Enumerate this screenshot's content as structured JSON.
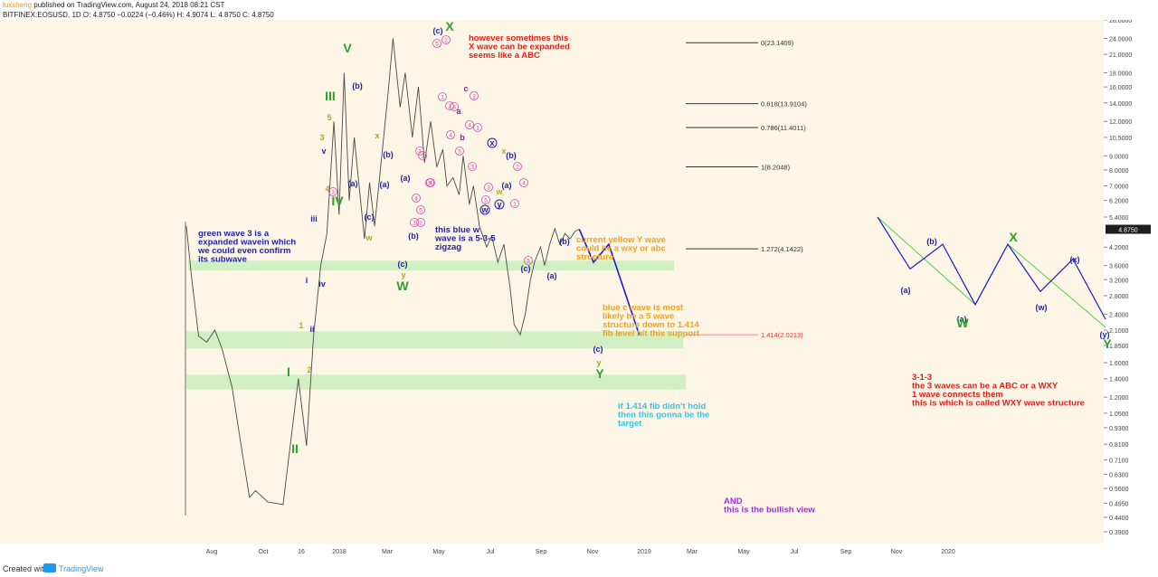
{
  "header": {
    "user": "luxsheng",
    "published": " published on TradingView.com, August 24, 2018 08:21 CST",
    "ticker_line": "BITFINEX:EOSUSD, 1D  O: 4.8750  −0.0224 (−0.46%)  H: 4.9074  L: 4.8750  C: 4.8750"
  },
  "footer": {
    "created_with": "Created with",
    "brand": "TradingView"
  },
  "chart_data": {
    "type": "line",
    "title": "BITFINEX:EOSUSD, 1D",
    "scale": "log",
    "ylim": [
      0.39,
      25.2
    ],
    "y_ticks": [
      "28.0000",
      "24.0000",
      "21.0000",
      "18.0000",
      "16.0000",
      "14.0000",
      "12.0000",
      "10.5000",
      "9.0000",
      "8.0000",
      "7.0000",
      "6.2000",
      "5.4000",
      "4.8750",
      "4.2000",
      "3.6000",
      "3.2000",
      "2.8000",
      "2.4000",
      "2.1000",
      "1.8500",
      "1.6000",
      "1.4000",
      "1.2000",
      "1.0500",
      "0.9300",
      "0.8100",
      "0.7100",
      "0.6300",
      "0.5600",
      "0.4950",
      "0.4400",
      "0.3900"
    ],
    "x_ticks": [
      "Aug",
      "Oct",
      "16",
      "2018",
      "Mar",
      "May",
      "Jul",
      "Sep",
      "Nov",
      "2019",
      "Mar",
      "May",
      "Jul",
      "Sep",
      "Nov",
      "2020"
    ],
    "last_price": "4.8750",
    "price_series": {
      "name": "EOSUSD",
      "x": [
        0,
        5,
        12,
        20,
        28,
        35,
        45,
        55,
        62,
        68,
        80,
        95,
        110,
        118,
        125,
        132,
        138,
        145,
        150,
        155,
        160,
        165,
        170,
        175,
        180,
        185,
        192,
        198,
        203,
        210,
        215,
        222,
        228,
        234,
        240,
        246,
        252,
        256,
        262,
        268,
        272,
        278,
        282,
        288,
        295,
        300,
        306,
        312,
        318,
        322,
        328,
        333,
        338,
        342,
        348,
        352,
        357,
        362,
        367,
        372,
        377,
        382,
        386
      ],
      "y": [
        5.0,
        3.3,
        2.0,
        1.9,
        2.1,
        1.8,
        1.3,
        0.75,
        0.52,
        0.55,
        0.5,
        0.49,
        1.4,
        0.8,
        2.0,
        3.6,
        4.7,
        12.0,
        5.5,
        18.0,
        6.2,
        10.5,
        6.8,
        4.5,
        7.2,
        5.0,
        9.0,
        15.0,
        24.0,
        13.5,
        18.0,
        10.5,
        16.0,
        8.5,
        12.0,
        8.2,
        9.5,
        7.0,
        7.5,
        6.5,
        9.0,
        6.0,
        7.0,
        5.0,
        4.2,
        4.6,
        3.7,
        4.3,
        3.0,
        2.2,
        2.02,
        2.4,
        3.2,
        3.7,
        4.2,
        3.6,
        4.3,
        4.9,
        4.3,
        4.7,
        4.5,
        4.8,
        4.875
      ]
    },
    "projection": {
      "name": "blue c wave projection",
      "points": [
        [
          386,
          4.875
        ],
        [
          400,
          3.7
        ],
        [
          415,
          4.3
        ],
        [
          445,
          2.02
        ]
      ]
    },
    "schematic_blue": {
      "name": "WXY schematic (blue)",
      "points": [
        [
          1,
          5.4
        ],
        [
          2,
          3.5
        ],
        [
          3,
          4.3
        ],
        [
          4,
          2.6
        ],
        [
          5,
          4.3
        ],
        [
          6,
          2.9
        ],
        [
          7,
          3.8
        ],
        [
          8,
          2.3
        ]
      ]
    },
    "schematic_green": {
      "name": "WXY schematic (green)",
      "points": [
        [
          1,
          5.4
        ],
        [
          4,
          2.6
        ],
        [
          5,
          4.3
        ],
        [
          8,
          2.15
        ]
      ]
    },
    "fib_levels": [
      {
        "label": "0(23.1409)",
        "value": 23.1409
      },
      {
        "label": "0.618(13.9104)",
        "value": 13.9104
      },
      {
        "label": "0.786(11.4011)",
        "value": 11.4011
      },
      {
        "label": "1(8.2048)",
        "value": 8.2048
      },
      {
        "label": "1.272(4.1422)",
        "value": 4.1422
      },
      {
        "label": "1.414(2.0213)",
        "value": 2.0213
      }
    ],
    "support_zones": [
      {
        "low": 3.45,
        "high": 3.75
      },
      {
        "low": 1.8,
        "high": 2.08
      },
      {
        "low": 1.28,
        "high": 1.45
      }
    ],
    "wave_labels": [
      {
        "text": "V",
        "color": "#2ca02c",
        "big": true
      },
      {
        "text": "III",
        "color": "#2ca02c",
        "big": true
      },
      {
        "text": "IV",
        "color": "#2ca02c",
        "big": true
      },
      {
        "text": "I",
        "color": "#2ca02c",
        "big": true
      },
      {
        "text": "II",
        "color": "#2ca02c",
        "big": true
      },
      {
        "text": "5",
        "color": "#b5a21e"
      },
      {
        "text": "3",
        "color": "#b5a21e"
      },
      {
        "text": "4",
        "color": "#b5a21e"
      },
      {
        "text": "1",
        "color": "#b5a21e"
      },
      {
        "text": "2",
        "color": "#b5a21e"
      },
      {
        "text": "v",
        "color": "#1f1fa0"
      },
      {
        "text": "iii",
        "color": "#1f1fa0"
      },
      {
        "text": "i",
        "color": "#1f1fa0"
      },
      {
        "text": "iv",
        "color": "#1f1fa0"
      },
      {
        "text": "ii",
        "color": "#1f1fa0"
      },
      {
        "text": "(b)",
        "color": "#1f1fa0"
      },
      {
        "text": "(a)",
        "color": "#1f1fa0"
      },
      {
        "text": "(c)",
        "color": "#1f1fa0"
      },
      {
        "text": "x",
        "color": "#b5a21e"
      },
      {
        "text": "w",
        "color": "#b5a21e"
      },
      {
        "text": "(b)",
        "color": "#1f1fa0"
      },
      {
        "text": "(a)",
        "color": "#1f1fa0"
      },
      {
        "text": "(a)",
        "color": "#1f1fa0"
      },
      {
        "text": "(b)",
        "color": "#1f1fa0"
      },
      {
        "text": "(c)",
        "color": "#1f1fa0"
      },
      {
        "text": "y",
        "color": "#b5a21e"
      },
      {
        "text": "W",
        "color": "#2ca02c",
        "big": true
      },
      {
        "text": "(c)",
        "color": "#1f1fa0"
      },
      {
        "text": "X",
        "color": "#2ca02c",
        "big": true
      },
      {
        "text": "c",
        "color": "#8a1fa0"
      },
      {
        "text": "a",
        "color": "#8a1fa0"
      },
      {
        "text": "b",
        "color": "#8a1fa0"
      },
      {
        "text": "x",
        "color": "#1f1fa0",
        "circle": true
      },
      {
        "text": "x",
        "color": "#b5a21e"
      },
      {
        "text": "(b)",
        "color": "#1f1fa0"
      },
      {
        "text": "(a)",
        "color": "#1f1fa0"
      },
      {
        "text": "w",
        "color": "#b5a21e"
      },
      {
        "text": "w",
        "color": "#1f1fa0",
        "circle": true
      },
      {
        "text": "y",
        "color": "#1f1fa0",
        "circle": true
      },
      {
        "text": "(c)",
        "color": "#1f1fa0"
      },
      {
        "text": "(b)",
        "color": "#1f1fa0"
      },
      {
        "text": "(a)",
        "color": "#1f1fa0"
      },
      {
        "text": "(c)",
        "color": "#1f1fa0"
      },
      {
        "text": "y",
        "color": "#b5a21e"
      },
      {
        "text": "Y",
        "color": "#2ca02c",
        "big": true
      },
      {
        "text": "(b)",
        "color": "#1f1fa0"
      },
      {
        "text": "(a)",
        "color": "#1f1fa0"
      },
      {
        "text": "(a)",
        "color": "#1f1fa0"
      },
      {
        "text": "W",
        "color": "#2ca02c",
        "big": true
      },
      {
        "text": "X",
        "color": "#2ca02c",
        "big": true
      },
      {
        "text": "(x)",
        "color": "#1f1fa0"
      },
      {
        "text": "(w)",
        "color": "#1f1fa0"
      },
      {
        "text": "(y)",
        "color": "#1f1fa0"
      },
      {
        "text": "Y",
        "color": "#2ca02c",
        "big": true
      }
    ],
    "subwave_numbers": [
      "5",
      "2",
      "1",
      "3",
      "4",
      "5",
      "3",
      "4",
      "2",
      "1",
      "5",
      "3",
      "2",
      "4",
      "1",
      "5",
      "3",
      "2",
      "4",
      "5",
      "3",
      "1",
      "2",
      "4",
      "3",
      "5"
    ],
    "annotations": [
      {
        "color": "#e0201c",
        "lines": [
          "however sometimes this",
          "X wave can be expanded",
          "seems like a ABC"
        ]
      },
      {
        "color": "#2222aa",
        "lines": [
          "green wave 3 is a",
          "expanded wavein which",
          "we could even confirm",
          "its subwave"
        ]
      },
      {
        "color": "#2222aa",
        "lines": [
          "this blue w",
          "wave is a 5-3-5",
          "zigzag"
        ]
      },
      {
        "color": "#f0a020",
        "lines": [
          "current yellow Y wave",
          "could be a wxy or abc",
          "structure"
        ]
      },
      {
        "color": "#f0a020",
        "lines": [
          "blue c wave is most",
          "likely be a 5 wave",
          "structure down to 1.414",
          "fib level hit this support"
        ]
      },
      {
        "color": "#33c5e8",
        "lines": [
          "if 1.414 fib didn't hold",
          "then this gonna be the",
          "target"
        ]
      },
      {
        "color": "#9b30d9",
        "lines": [
          "AND",
          "this is the bullish view"
        ]
      },
      {
        "color": "#e0201c",
        "lines": [
          "3-1-3",
          "the 3 waves can be a ABC or a WXY",
          "1 wave connects them",
          "this is which is called WXY wave structure"
        ]
      }
    ]
  }
}
